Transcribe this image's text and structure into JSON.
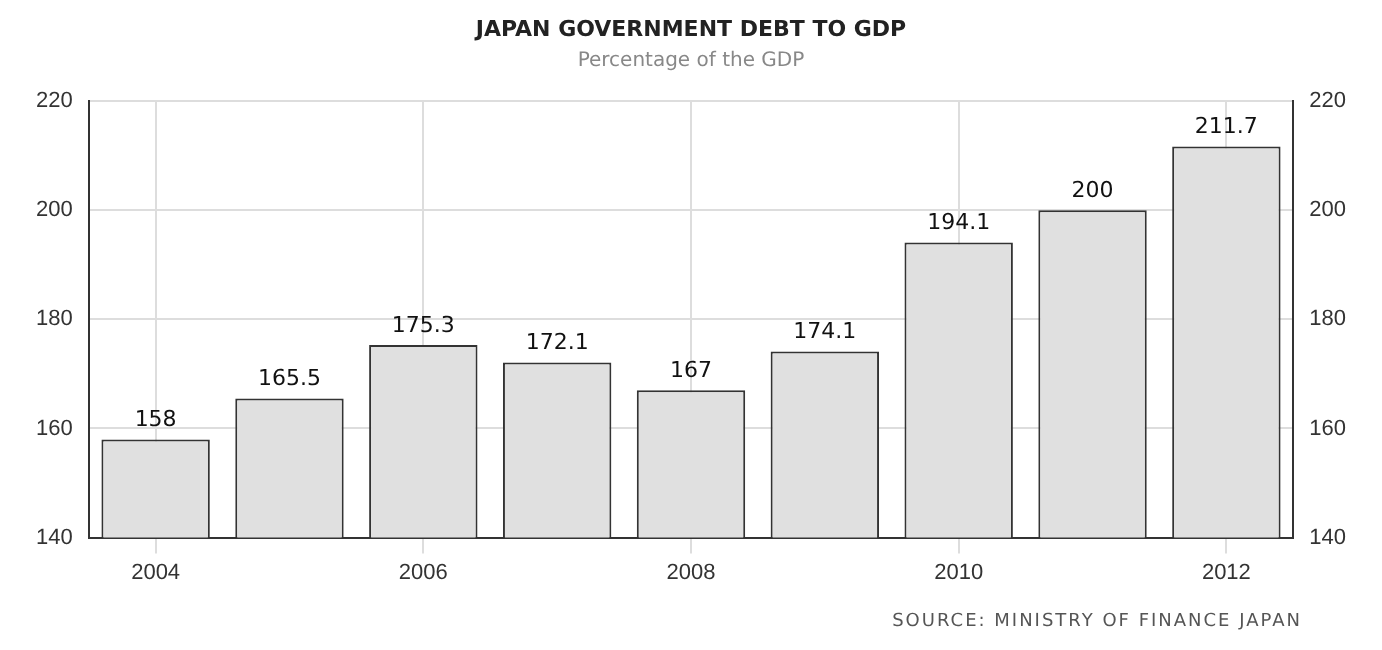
{
  "chart_data": {
    "type": "bar",
    "title": "JAPAN GOVERNMENT DEBT TO GDP",
    "subtitle": "Percentage of the GDP",
    "categories": [
      "2004",
      null,
      "2006",
      null,
      "2008",
      null,
      "2010",
      null,
      "2012"
    ],
    "values": [
      158,
      165.5,
      175.3,
      172.1,
      167,
      174.1,
      194.1,
      200,
      211.7
    ],
    "color": "#e0e0e0",
    "ylim": [
      140,
      220
    ],
    "yticks": [
      140,
      160,
      180,
      200,
      220
    ],
    "y2lim": [
      140,
      220
    ],
    "y2ticks": [
      140,
      160,
      180,
      200,
      220
    ],
    "grid": true,
    "data_labels": true,
    "legend": false,
    "annotations": [
      "SOURCE: MINISTRY OF FINANCE JAPAN"
    ]
  }
}
